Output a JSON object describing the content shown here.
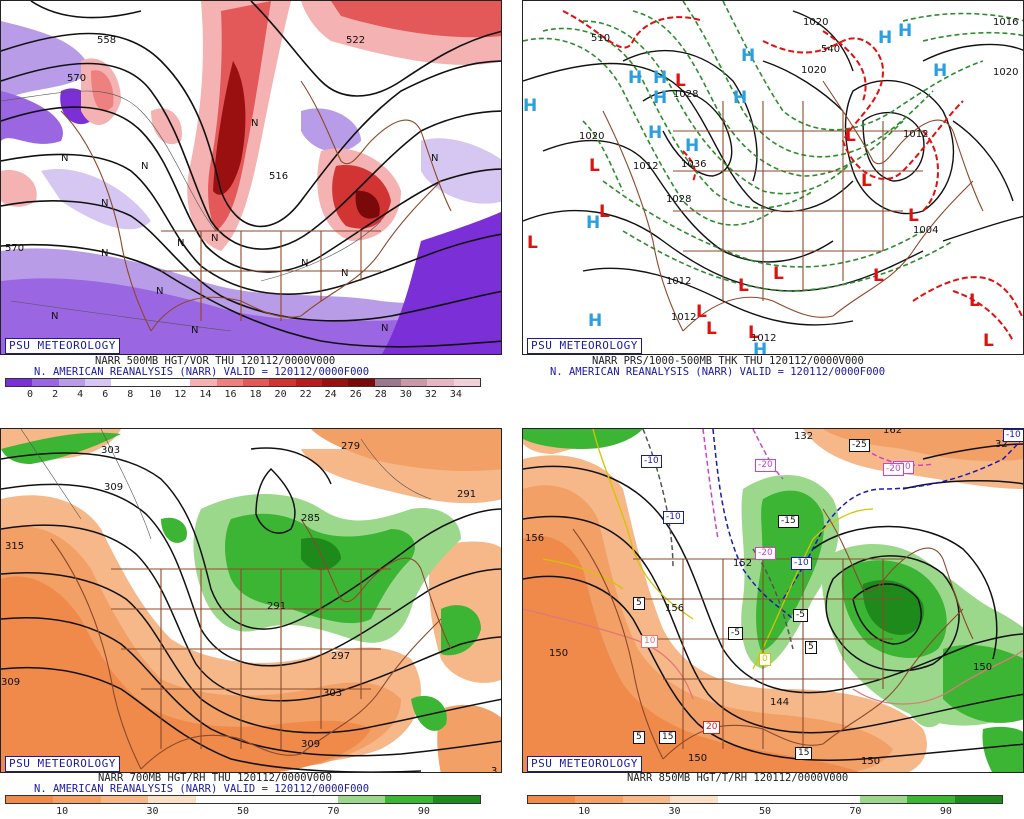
{
  "brand": "PSU METEOROLOGY",
  "panels": [
    {
      "id": "vor",
      "caption1": "NARR 500MB HGT/VOR THU 120112/0000V000",
      "caption2": "N. AMERICAN REANALYSIS (NARR) VALID = 120112/0000F000",
      "colorbar_colors": [
        "#7b2fd6",
        "#9a66e2",
        "#b89ce8",
        "#d5c7f2",
        "#ffffff",
        "#ffffff",
        "#ffffff",
        "#f4b2b2",
        "#ee8080",
        "#e35858",
        "#d23434",
        "#b81d1d",
        "#9a1010",
        "#7a0a0a",
        "#9a7a8a",
        "#c89aa8",
        "#e6b6c4",
        "#f2d0da"
      ],
      "colorbar_labels": [
        "0",
        "2",
        "4",
        "6",
        "8",
        "10",
        "12",
        "14",
        "16",
        "18",
        "20",
        "22",
        "24",
        "26",
        "28",
        "30",
        "32",
        "34"
      ],
      "contour_labels": [
        "558",
        "570",
        "522",
        "516",
        "570"
      ],
      "symbols": [
        "N",
        "N",
        "N",
        "N",
        "N",
        "N",
        "N",
        "N",
        "N",
        "N",
        "N",
        "N",
        "N",
        "N"
      ]
    },
    {
      "id": "thk",
      "caption1": "NARR PRS/1000-500MB THK THU 120112/0000V000",
      "caption2": "N. AMERICAN REANALYSIS (NARR) VALID = 120112/0000F000",
      "contour_labels": [
        "1020",
        "1020",
        "1016",
        "1020",
        "1028",
        "1020",
        "1036",
        "1028",
        "1012",
        "1004",
        "1012",
        "1012",
        "1012",
        "540",
        "510",
        "1012"
      ],
      "highs": [
        "H",
        "H",
        "H",
        "H",
        "H",
        "H",
        "H",
        "H",
        "H",
        "H",
        "H",
        "H",
        "H",
        "H"
      ],
      "lows": [
        "L",
        "L",
        "L",
        "L",
        "L",
        "L",
        "L",
        "L",
        "L",
        "L",
        "L",
        "L",
        "L",
        "L",
        "L"
      ]
    },
    {
      "id": "rh700",
      "caption1": "NARR 700MB HGT/RH THU 120112/0000V000",
      "caption2": "N. AMERICAN REANALYSIS (NARR) VALID = 120112/0000F000",
      "colorbar_colors": [
        "#ef8a4a",
        "#f2a066",
        "#f6b888",
        "#fbe0c8",
        "#ffffff",
        "#ffffff",
        "#ffffff",
        "#9cd88c",
        "#3cb534",
        "#1f8a1c"
      ],
      "colorbar_labels": [
        "10",
        "30",
        "50",
        "70",
        "90"
      ],
      "contour_labels": [
        "303",
        "309",
        "315",
        "309",
        "279",
        "291",
        "285",
        "291",
        "297",
        "303",
        "309",
        "3"
      ]
    },
    {
      "id": "t850",
      "caption1": "NARR 850MB HGT/T/RH 120112/0000V000",
      "colorbar_colors": [
        "#ef8a4a",
        "#f2a066",
        "#f6b888",
        "#fbe0c8",
        "#ffffff",
        "#ffffff",
        "#ffffff",
        "#9cd88c",
        "#3cb534",
        "#1f8a1c"
      ],
      "colorbar_labels": [
        "10",
        "30",
        "50",
        "70",
        "90"
      ],
      "contour_labels": [
        "156",
        "150",
        "156",
        "150",
        "144",
        "150",
        "150",
        "132",
        "152",
        "162",
        "32"
      ],
      "temp_boxes": [
        "-10",
        "-10",
        "-5",
        "-20",
        "-15",
        "-20",
        "-10",
        "-5",
        "5",
        "0",
        "10",
        "5",
        "5",
        "20",
        "15",
        "15",
        "-25",
        "-20",
        "-10",
        "-20"
      ]
    }
  ]
}
